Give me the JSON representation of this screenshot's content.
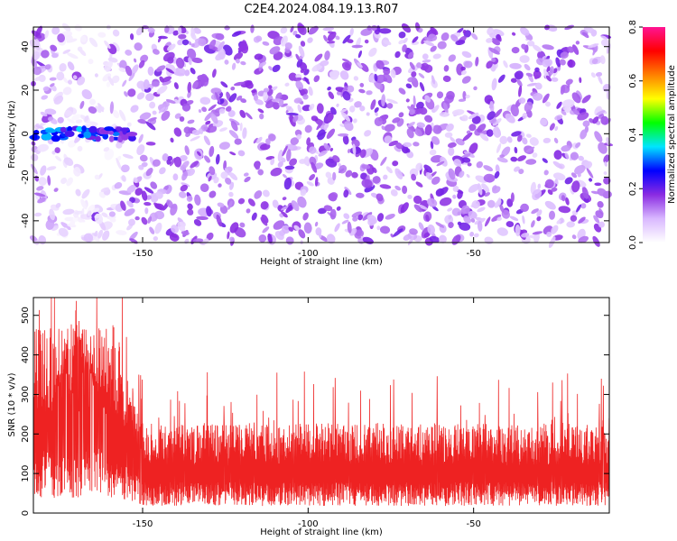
{
  "chart_data": [
    {
      "type": "heatmap",
      "title": "C2E4.2024.084.19.13.R07",
      "xlabel": "Height of straight line (km)",
      "ylabel": "Frequency (Hz)",
      "xlim": [
        -183,
        -9
      ],
      "ylim": [
        -50,
        49
      ],
      "xticks": [
        -150,
        -100,
        -50
      ],
      "yticks": [
        -40,
        -20,
        0,
        20,
        40
      ],
      "colorbar": {
        "label": "Normalized spectral amplitude",
        "range": [
          0,
          0.8
        ],
        "ticks": [
          0.0,
          0.2,
          0.4,
          0.6,
          0.8
        ],
        "colors": [
          "#ffffff",
          "#d9b8ff",
          "#8a2be2",
          "#0000ff",
          "#00e5ff",
          "#00ff00",
          "#ffff00",
          "#ff8000",
          "#ff0000",
          "#ff1493"
        ]
      },
      "features": {
        "signal_band_frequency_hz": 0,
        "signal_band_x_range_km": [
          -183,
          -153
        ],
        "signal_band_peak_amplitude": 0.35,
        "background_amplitude_range": [
          0.05,
          0.2
        ],
        "quiet_region_x_range_km": [
          -176,
          -156
        ]
      }
    },
    {
      "type": "line",
      "xlabel": "Height of straight line (km)",
      "ylabel": "SNR (10 * v/v)",
      "xlim": [
        -183,
        -9
      ],
      "ylim": [
        0,
        545
      ],
      "xticks": [
        -150,
        -100,
        -50
      ],
      "yticks": [
        0,
        100,
        200,
        300,
        400,
        500
      ],
      "color": "#ee2222",
      "features": {
        "baseline_mean": 120,
        "peak_x_km": -170,
        "peak_value": 540,
        "elevated_region_x_range_km": [
          -183,
          -150
        ],
        "elevated_region_typical": 250
      }
    }
  ]
}
